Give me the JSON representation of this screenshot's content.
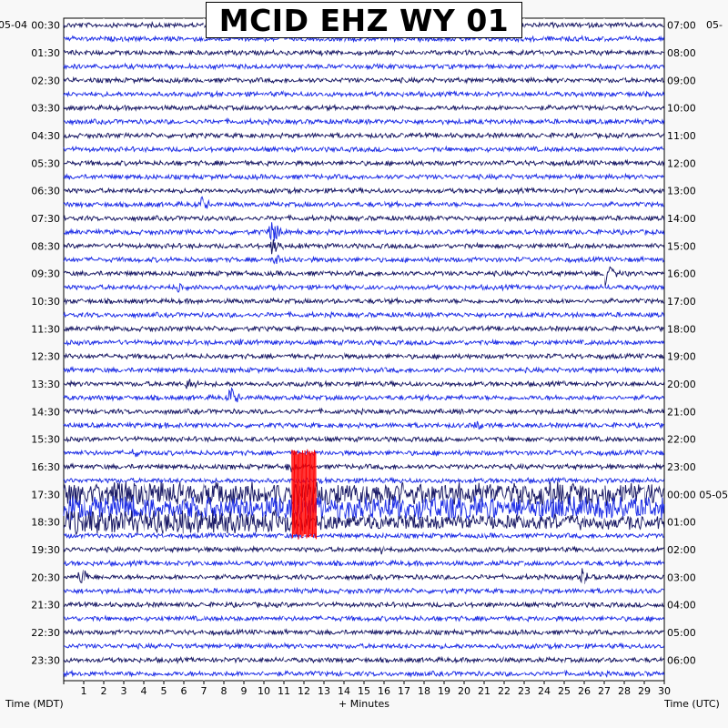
{
  "chart_data": {
    "type": "helicorder",
    "title": "MCID EHZ WY 01",
    "left_axis_label": "Time (MDT)",
    "right_axis_label": "Time (UTC)",
    "x_axis_label": "+ Minutes",
    "left_date": "05-04",
    "right_date": "05-05",
    "right_top_date": "05-",
    "x_ticks": [
      1,
      2,
      3,
      4,
      5,
      6,
      7,
      8,
      9,
      10,
      11,
      12,
      13,
      14,
      15,
      16,
      17,
      18,
      19,
      20,
      21,
      22,
      23,
      24,
      25,
      26,
      27,
      28,
      29,
      30
    ],
    "x_range": [
      0,
      30
    ],
    "left_labels": [
      "00:30",
      "01:30",
      "02:30",
      "03:30",
      "04:30",
      "05:30",
      "06:30",
      "07:30",
      "08:30",
      "09:30",
      "10:30",
      "11:30",
      "12:30",
      "13:30",
      "14:30",
      "15:30",
      "16:30",
      "17:30",
      "18:30",
      "19:30",
      "20:30",
      "21:30",
      "22:30",
      "23:30"
    ],
    "right_labels": [
      "07:00",
      "08:00",
      "09:00",
      "10:00",
      "11:00",
      "12:00",
      "13:00",
      "14:00",
      "15:00",
      "16:00",
      "17:00",
      "18:00",
      "19:00",
      "20:00",
      "21:00",
      "22:00",
      "23:00",
      "00:00",
      "01:00",
      "02:00",
      "03:00",
      "04:00",
      "05:00",
      "06:00"
    ],
    "trace_rows": 48,
    "colors": {
      "trace_a": "#1a1a66",
      "trace_b": "#1e2ee6",
      "clipped": "#ff0000",
      "gridline": "#ffffff",
      "background": "#ffffff"
    },
    "events": [
      {
        "row": 13,
        "minute": 6.9,
        "amp": 10
      },
      {
        "row": 15,
        "minute": 10.3,
        "amp": 22
      },
      {
        "row": 16,
        "minute": 10.4,
        "amp": 14
      },
      {
        "row": 17,
        "minute": 10.5,
        "amp": 10
      },
      {
        "row": 19,
        "minute": 5.6,
        "amp": 8
      },
      {
        "row": 18,
        "minute": 27.0,
        "amp": 18
      },
      {
        "row": 23,
        "minute": 8.8,
        "amp": 7
      },
      {
        "row": 26,
        "minute": 6.2,
        "amp": 12
      },
      {
        "row": 27,
        "minute": 8.3,
        "amp": 14
      },
      {
        "row": 29,
        "minute": 4.8,
        "amp": 7
      },
      {
        "row": 29,
        "minute": 20.6,
        "amp": 7
      },
      {
        "row": 31,
        "minute": 3.4,
        "amp": 8
      },
      {
        "row": 32,
        "minute": 11.2,
        "amp": 10
      },
      {
        "row": 38,
        "minute": 15.8,
        "amp": 9
      },
      {
        "row": 40,
        "minute": 0.8,
        "amp": 14
      },
      {
        "row": 40,
        "minute": 25.9,
        "amp": 14
      }
    ],
    "noisy_rows": [
      34,
      35,
      36
    ],
    "clipped_event": {
      "rows": [
        31,
        32,
        33,
        34,
        35,
        36,
        37
      ],
      "minute_start": 11.4,
      "minute_end": 12.6
    }
  }
}
